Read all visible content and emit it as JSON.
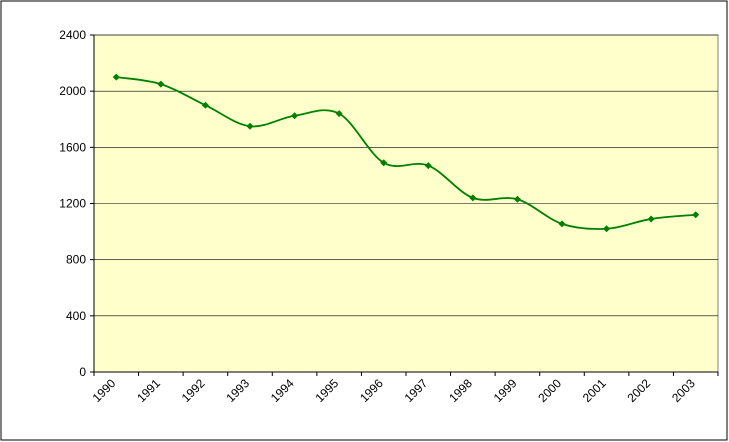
{
  "chart_data": {
    "type": "line",
    "categories": [
      "1990",
      "1991",
      "1992",
      "1993",
      "1994",
      "1995",
      "1996",
      "1997",
      "1998",
      "1999",
      "2000",
      "2001",
      "2002",
      "2003"
    ],
    "series": [
      {
        "color": "#008000",
        "values": [
          2100,
          2050,
          1900,
          1750,
          1825,
          1840,
          1490,
          1470,
          1240,
          1230,
          1055,
          1020,
          1090,
          1120
        ]
      }
    ],
    "ylim": [
      0,
      2400
    ],
    "yticks": [
      0,
      400,
      800,
      1200,
      1600,
      2000,
      2400
    ],
    "grid": true,
    "plot_background": "#ffffcc",
    "smooth": true
  }
}
